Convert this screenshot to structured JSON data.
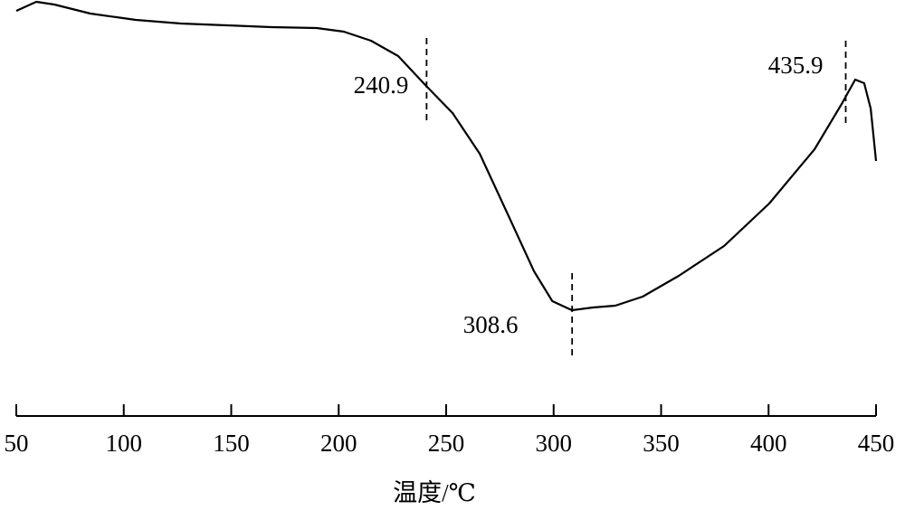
{
  "chart_data": {
    "type": "line",
    "x": [
      50,
      59.3,
      67.7,
      84.5,
      105.6,
      126.6,
      147.7,
      168.7,
      189.8,
      202.4,
      215,
      227.7,
      240.7,
      253,
      265.6,
      278.3,
      290.9,
      299.4,
      308.5,
      318.3,
      328.7,
      341.4,
      358.2,
      379.3,
      400.3,
      421.4,
      434,
      440.3,
      444.5,
      447.5,
      450
    ],
    "values": [
      97,
      99.5,
      98.75,
      96.25,
      94.5,
      93.5,
      93,
      92.5,
      92.25,
      91.25,
      88.75,
      84.5,
      76.25,
      68.75,
      57.5,
      41.25,
      25,
      16.75,
      14.25,
      15,
      15.5,
      18,
      23.75,
      32,
      43.75,
      58.75,
      71.25,
      78,
      77,
      70,
      55.5
    ],
    "color": "#000000",
    "xlim": [
      50,
      450
    ],
    "xticks": [
      50,
      100,
      150,
      200,
      250,
      300,
      350,
      400,
      450
    ],
    "ylim": [
      0,
      100
    ],
    "xlabel": "温度/℃",
    "markers": [
      240.9,
      308.6,
      435.9
    ]
  }
}
